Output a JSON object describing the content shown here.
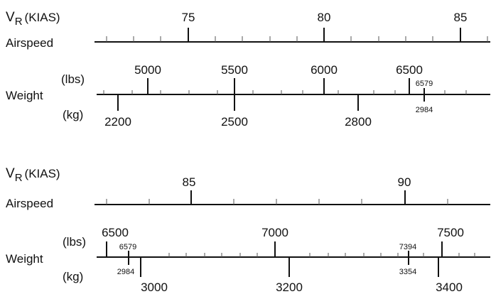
{
  "charts": [
    {
      "vr_label": {
        "main": "V",
        "sub": "R",
        "unit": "(KIAS)"
      },
      "airspeed_label": "Airspeed",
      "weight_label": "Weight",
      "lbs_label": "(lbs)",
      "kg_label": "(kg)",
      "airspeed_ticks": [
        "75",
        "80",
        "85"
      ],
      "lbs_ticks": [
        "5000",
        "5500",
        "6000",
        "6500"
      ],
      "kg_ticks": [
        "2200",
        "2500",
        "2800"
      ],
      "marker": {
        "lbs": "6579",
        "kg": "2984"
      }
    },
    {
      "vr_label": {
        "main": "V",
        "sub": "R",
        "unit": "(KIAS)"
      },
      "airspeed_label": "Airspeed",
      "weight_label": "Weight",
      "lbs_label": "(lbs)",
      "kg_label": "(kg)",
      "airspeed_ticks": [
        "85",
        "90"
      ],
      "lbs_ticks": [
        "6500",
        "7000",
        "7500"
      ],
      "kg_ticks": [
        "3000",
        "3200",
        "3400"
      ],
      "marker_low": {
        "lbs": "6579",
        "kg": "2984"
      },
      "marker_high": {
        "lbs": "7394",
        "kg": "3354"
      }
    }
  ]
}
